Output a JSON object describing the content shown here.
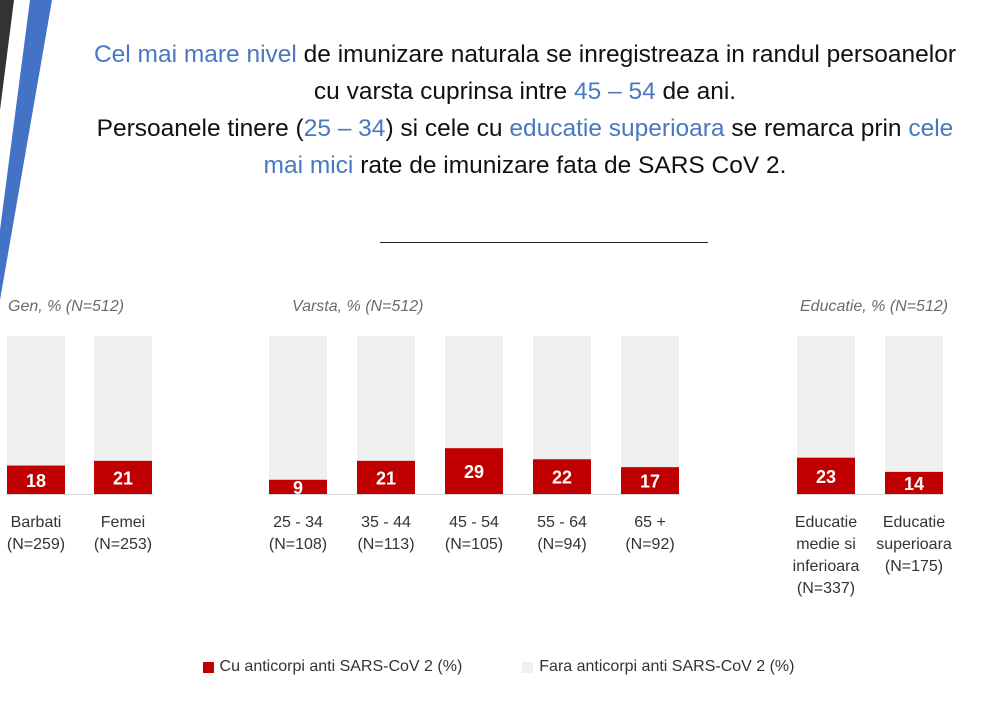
{
  "headline": {
    "p1": "Cel mai mare nivel",
    "p2": " de imunizare naturala se inregistreaza in randul persoanelor cu varsta cuprinsa intre ",
    "p3": "45 – 54",
    "p4": " de ani.",
    "p5": "Persoanele tinere (",
    "p6": "25 – 34",
    "p7": ") si cele cu ",
    "p8": "educatie superioara",
    "p9": " se remarca prin ",
    "p10": "cele mai mici",
    "p11": " rate de imunizare fata de SARS CoV 2."
  },
  "colors": {
    "positive": "#c00000",
    "negative": "#f0f0f0",
    "highlight": "#4a78c0",
    "deco_blue": "#4472c4",
    "deco_dark": "#333333"
  },
  "chart_data": {
    "type": "bar",
    "stacked": true,
    "groups": [
      {
        "label": "Gen, % (N=512)",
        "categories": [
          "Barbati\n(N=259)",
          "Femei\n(N=253)"
        ]
      },
      {
        "label": "Varsta, % (N=512)",
        "categories": [
          "25 - 34\n(N=108)",
          "35 - 44\n(N=113)",
          "45 - 54\n(N=105)",
          "55 - 64\n(N=94)",
          "65 +\n(N=92)"
        ]
      },
      {
        "label": "Educatie, % (N=512)",
        "categories": [
          "Educatie\nmedie si\ninferioara\n(N=337)",
          "Educatie\nsuperioara\n(N=175)"
        ]
      }
    ],
    "categories": [
      "Barbati\n(N=259)",
      "Femei\n(N=253)",
      "25 - 34\n(N=108)",
      "35 - 44\n(N=113)",
      "45 - 54\n(N=105)",
      "55 - 64\n(N=94)",
      "65 +\n(N=92)",
      "Educatie\nmedie si\ninferioara\n(N=337)",
      "Educatie\nsuperioara\n(N=175)"
    ],
    "series": [
      {
        "name": "Cu anticorpi anti SARS-CoV 2 (%)",
        "values": [
          18,
          21,
          9,
          21,
          29,
          22,
          17,
          23,
          14
        ]
      },
      {
        "name": "Fara anticorpi anti SARS-CoV 2 (%)",
        "values": [
          82,
          79,
          91,
          79,
          71,
          78,
          83,
          77,
          86
        ]
      }
    ],
    "ylim": [
      0,
      100
    ],
    "grid": false,
    "legend": "bottom"
  }
}
